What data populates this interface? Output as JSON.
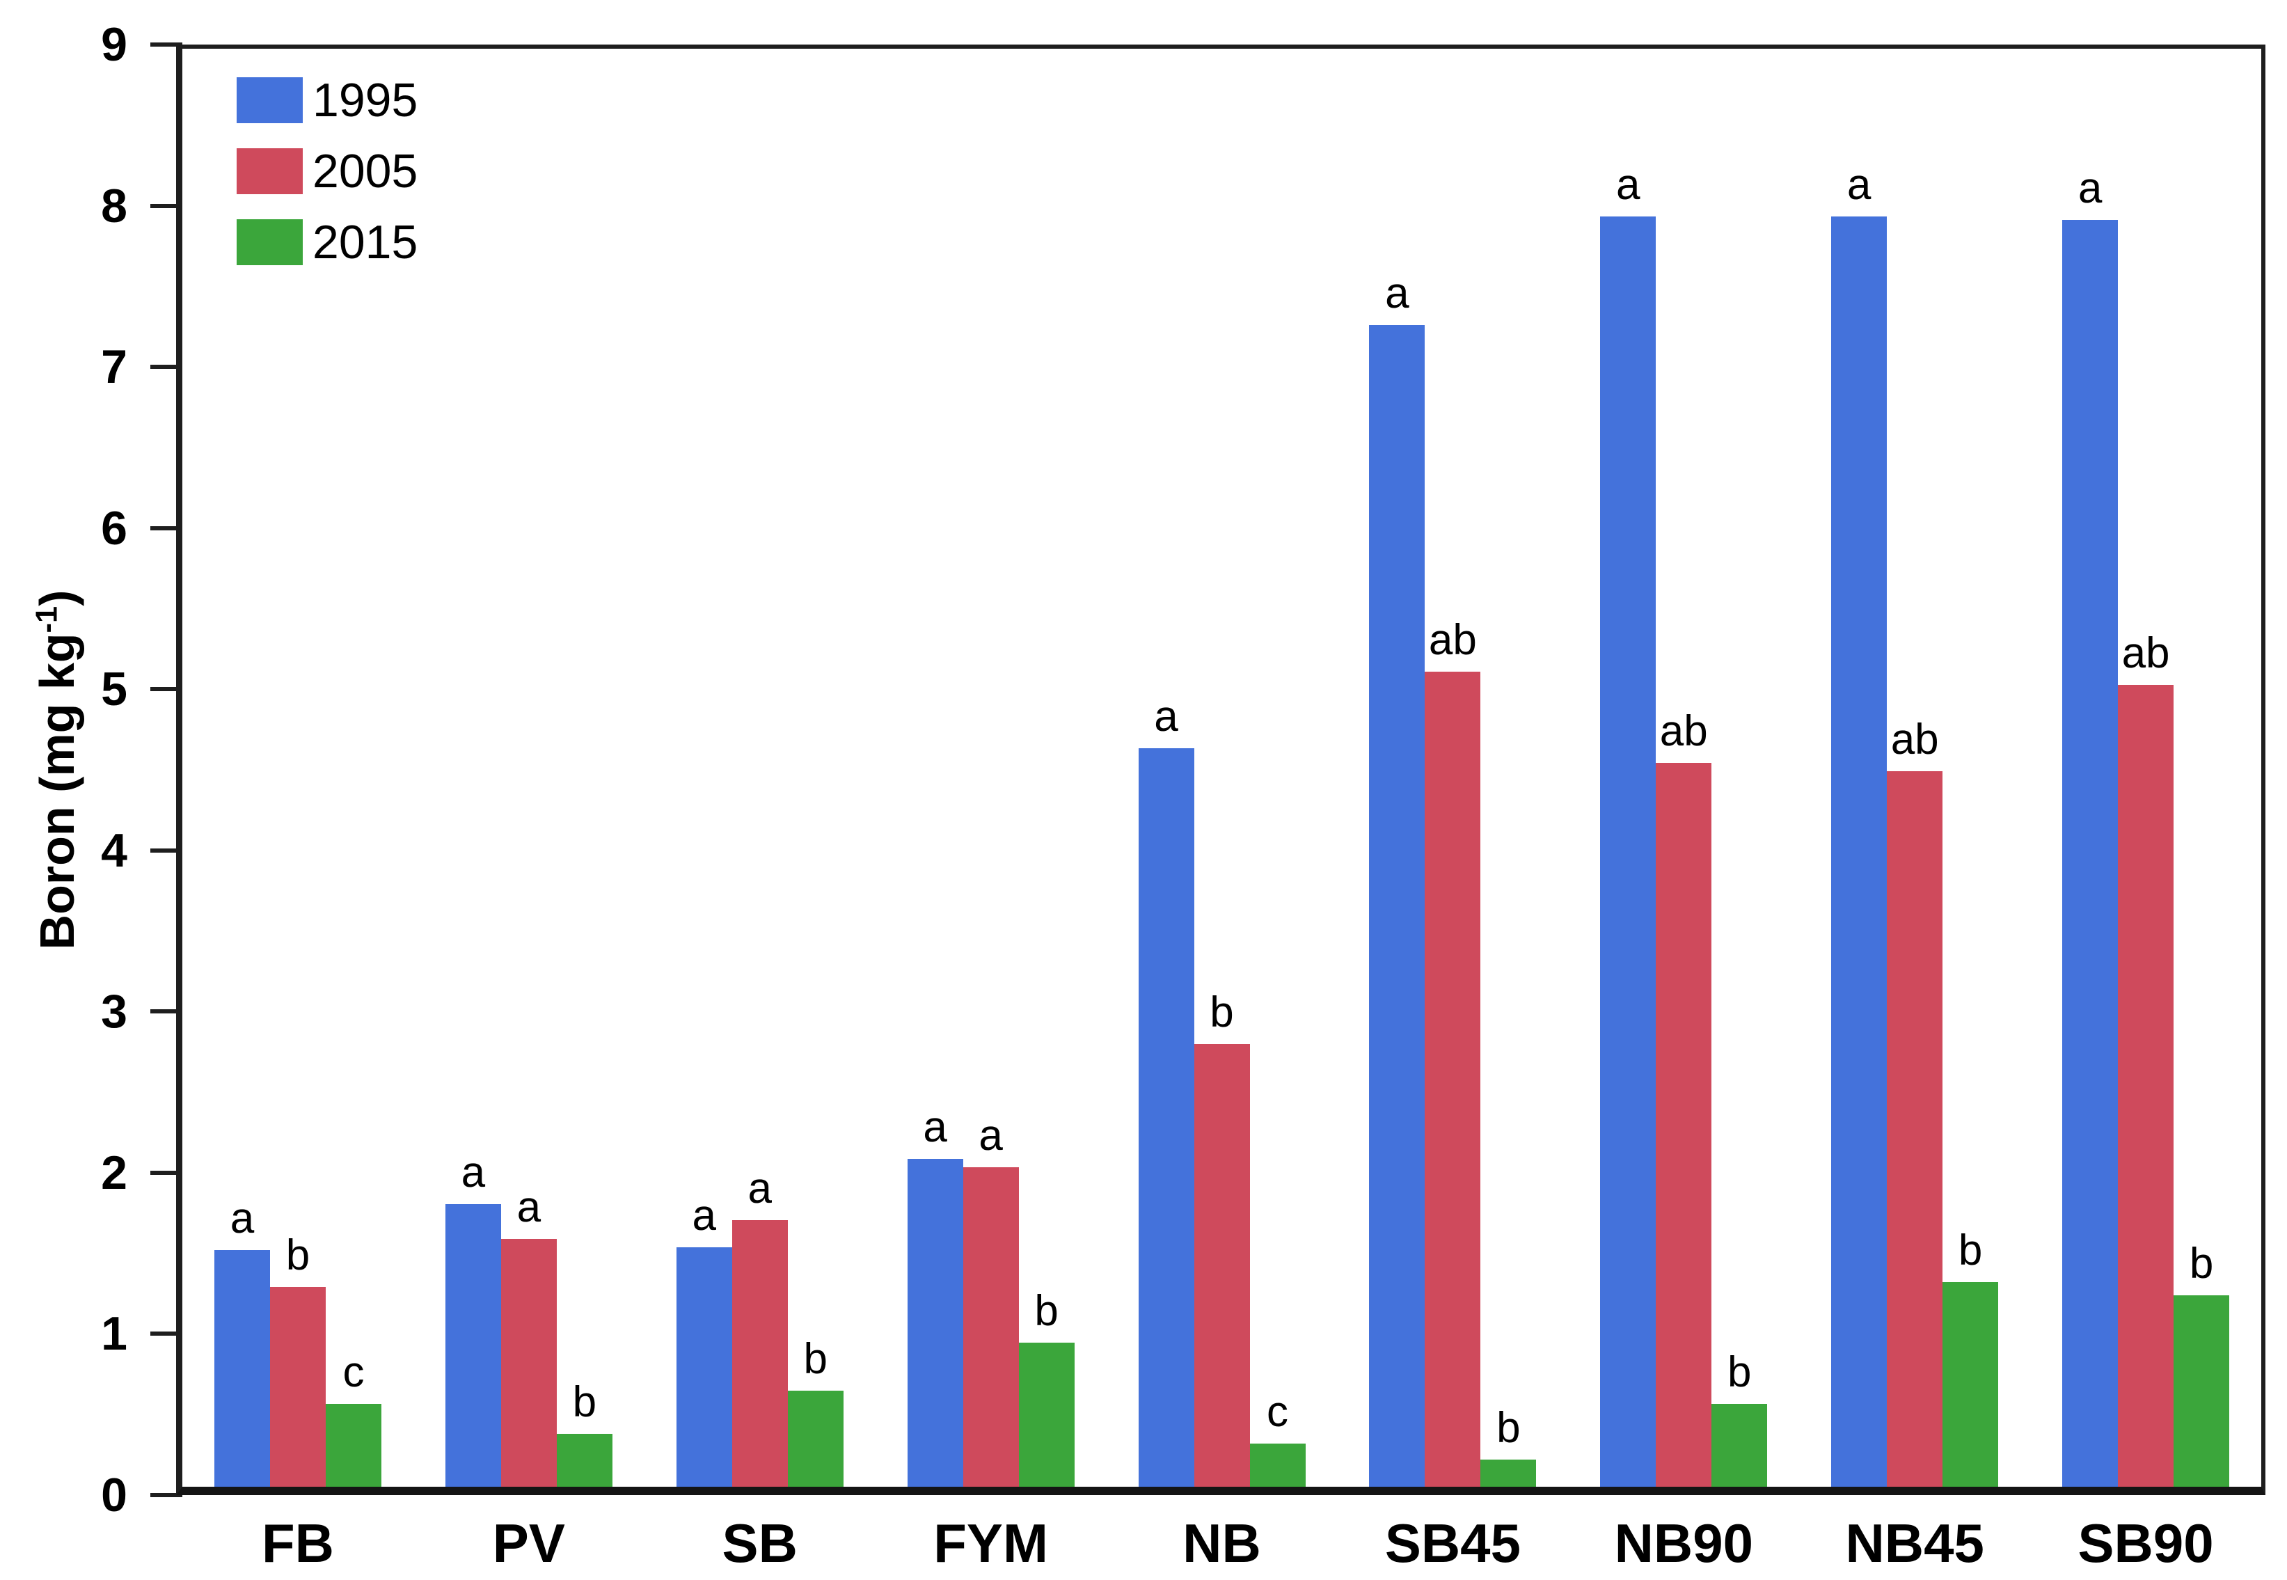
{
  "chart_data": {
    "type": "bar",
    "title": "",
    "ylabel": {
      "prefix": "Boron (mg kg",
      "sup": "-1",
      "suffix": ")"
    },
    "xlabel": "",
    "ylim": [
      0,
      9
    ],
    "yticks": [
      0,
      1,
      2,
      3,
      4,
      5,
      6,
      7,
      8,
      9
    ],
    "grid": false,
    "legend_position": "top-left-inside",
    "axis_color": "#1e1e1e",
    "categories": [
      "FB",
      "PV",
      "SB",
      "FYM",
      "NB",
      "SB45",
      "NB90",
      "NB45",
      "SB90"
    ],
    "series": [
      {
        "name": "1995",
        "color": "#4472DB",
        "values": [
          1.48,
          1.77,
          1.5,
          2.05,
          4.62,
          7.27,
          7.95,
          7.95,
          7.93
        ],
        "sig_letters": [
          "a",
          "a",
          "a",
          "a",
          "a",
          "a",
          "a",
          "a",
          "a"
        ]
      },
      {
        "name": "2005",
        "color": "#CF4A5C",
        "values": [
          1.25,
          1.55,
          1.67,
          2.0,
          2.77,
          5.1,
          4.53,
          4.48,
          5.02
        ],
        "sig_letters": [
          "b",
          "a",
          "a",
          "a",
          "b",
          "ab",
          "ab",
          "ab",
          "ab"
        ]
      },
      {
        "name": "2015",
        "color": "#3BA63B",
        "values": [
          0.52,
          0.33,
          0.6,
          0.9,
          0.27,
          0.17,
          0.52,
          1.28,
          1.2
        ],
        "sig_letters": [
          "c",
          "b",
          "b",
          "b",
          "c",
          "b",
          "b",
          "b",
          "b"
        ]
      }
    ]
  }
}
